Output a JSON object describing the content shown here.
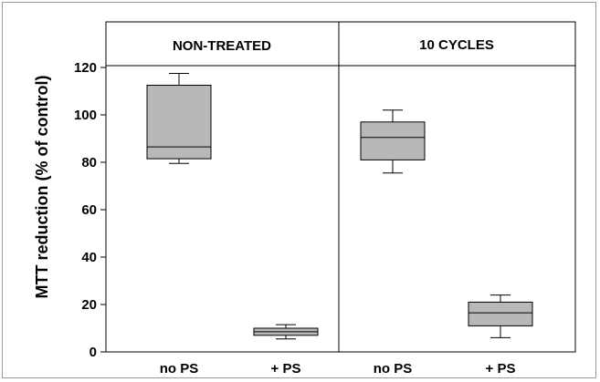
{
  "chart_data": {
    "type": "box",
    "ylabel": "MTT reduction (% of control)",
    "ylim": [
      0,
      140
    ],
    "yticks": [
      0,
      20,
      40,
      60,
      80,
      100,
      120
    ],
    "grid": false,
    "panels": [
      {
        "title": "NON-TREATED",
        "categories": [
          "no PS",
          "+ PS"
        ],
        "boxes": [
          {
            "category": "no PS",
            "whisker_low": 79.5,
            "q1": 81.5,
            "median": 86.5,
            "q3": 112.5,
            "whisker_high": 117.5
          },
          {
            "category": "+ PS",
            "whisker_low": 5.5,
            "q1": 7,
            "median": 8.5,
            "q3": 10,
            "whisker_high": 11.5
          }
        ]
      },
      {
        "title": "10 CYCLES",
        "categories": [
          "no PS",
          "+ PS"
        ],
        "boxes": [
          {
            "category": "no PS",
            "whisker_low": 75.5,
            "q1": 81,
            "median": 90.5,
            "q3": 97,
            "whisker_high": 102
          },
          {
            "category": "+ PS",
            "whisker_low": 6,
            "q1": 11,
            "median": 16.5,
            "q3": 21,
            "whisker_high": 24
          }
        ]
      }
    ],
    "colors": {
      "box_fill": "#b8b8b8",
      "stroke": "#000000"
    }
  }
}
